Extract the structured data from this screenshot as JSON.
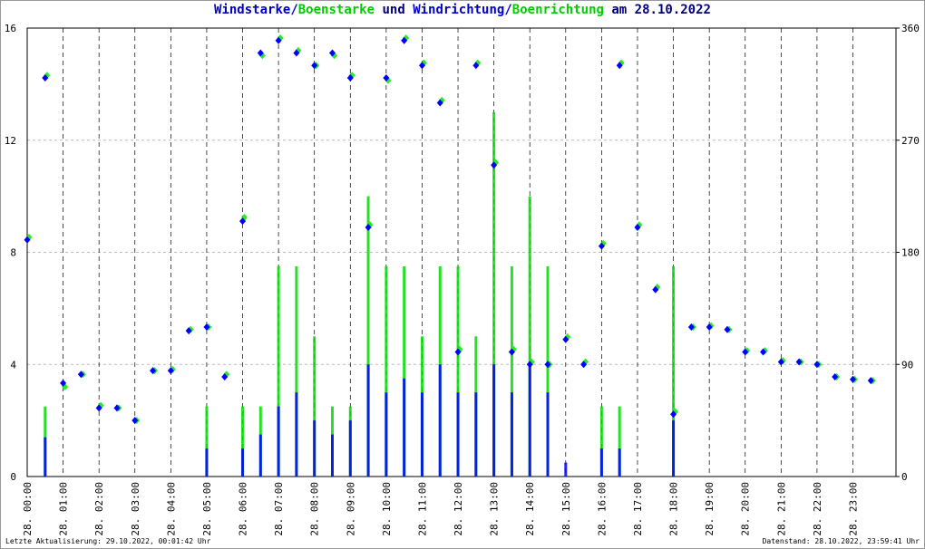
{
  "chart_data": {
    "type": "wind",
    "title_parts": [
      {
        "text": "Windstarke",
        "color": "#0000cc"
      },
      {
        "text": "/",
        "color": "#0000cc"
      },
      {
        "text": "Boenstarke",
        "color": "#00cc00"
      },
      {
        "text": " und ",
        "color": "#000080"
      },
      {
        "text": "Windrichtung",
        "color": "#0000cc"
      },
      {
        "text": "/",
        "color": "#0000cc"
      },
      {
        "text": "Boenrichtung",
        "color": "#00cc00"
      },
      {
        "text": " am 28.10.2022",
        "color": "#000080"
      }
    ],
    "x": [
      0,
      0.5,
      1,
      1.5,
      2,
      2.5,
      3,
      3.5,
      4,
      4.5,
      5,
      5.5,
      6,
      6.5,
      7,
      7.5,
      8,
      8.5,
      9,
      9.5,
      10,
      10.5,
      11,
      11.5,
      12,
      12.5,
      13,
      13.5,
      14,
      14.5,
      15,
      15.5,
      16,
      16.5,
      17,
      17.5,
      18,
      18.5,
      19,
      19.5,
      20,
      20.5,
      21,
      21.5,
      22,
      22.5,
      23,
      23.5
    ],
    "xlim": [
      0,
      24.2
    ],
    "xticks": [
      {
        "value": 0,
        "label": "28. 00:00"
      },
      {
        "value": 1,
        "label": "28. 01:00"
      },
      {
        "value": 2,
        "label": "28. 02:00"
      },
      {
        "value": 3,
        "label": "28. 03:00"
      },
      {
        "value": 4,
        "label": "28. 04:00"
      },
      {
        "value": 5,
        "label": "28. 05:00"
      },
      {
        "value": 6,
        "label": "28. 06:00"
      },
      {
        "value": 7,
        "label": "28. 07:00"
      },
      {
        "value": 8,
        "label": "28. 08:00"
      },
      {
        "value": 9,
        "label": "28. 09:00"
      },
      {
        "value": 10,
        "label": "28. 10:00"
      },
      {
        "value": 11,
        "label": "28. 11:00"
      },
      {
        "value": 12,
        "label": "28. 12:00"
      },
      {
        "value": 13,
        "label": "28. 13:00"
      },
      {
        "value": 14,
        "label": "28. 14:00"
      },
      {
        "value": 15,
        "label": "28. 15:00"
      },
      {
        "value": 16,
        "label": "28. 16:00"
      },
      {
        "value": 17,
        "label": "28. 17:00"
      },
      {
        "value": 18,
        "label": "28. 18:00"
      },
      {
        "value": 19,
        "label": "28. 19:00"
      },
      {
        "value": 20,
        "label": "28. 20:00"
      },
      {
        "value": 21,
        "label": "28. 21:00"
      },
      {
        "value": 22,
        "label": "28. 22:00"
      },
      {
        "value": 23,
        "label": "28. 23:00"
      }
    ],
    "ylim": [
      0,
      16
    ],
    "yticks": [
      0,
      4,
      8,
      12,
      16
    ],
    "y2lim": [
      0,
      360
    ],
    "y2ticks": [
      0,
      90,
      180,
      270,
      360
    ],
    "series": [
      {
        "name": "Boenstarke",
        "color": "#00dd00",
        "kind": "speed",
        "values": [
          0,
          2.5,
          0,
          0,
          0,
          0,
          0,
          0,
          0,
          0,
          2.5,
          0,
          2.5,
          2.5,
          7.5,
          7.5,
          5,
          2.5,
          2.5,
          10,
          7.5,
          7.5,
          5,
          7.5,
          7.5,
          5,
          13,
          7.5,
          10,
          7.5,
          0,
          0,
          2.5,
          2.5,
          0,
          0,
          7.5,
          0,
          0,
          0,
          0,
          0,
          0,
          0,
          0,
          0,
          0,
          0
        ]
      },
      {
        "name": "Windstarke",
        "color": "#0000ff",
        "kind": "speed",
        "values": [
          0,
          1.4,
          0,
          0,
          0,
          0,
          0,
          0,
          0,
          0,
          1,
          0,
          1,
          1.5,
          2.5,
          3,
          2,
          1.5,
          2,
          4,
          3,
          3.5,
          3,
          4,
          3,
          3,
          4,
          3,
          4,
          3,
          0.5,
          0,
          1,
          1,
          0,
          0,
          2,
          0,
          0,
          0,
          0,
          0,
          0,
          0,
          0,
          0,
          0,
          0
        ]
      },
      {
        "name": "Boenrichtung",
        "color": "#22ee22",
        "kind": "direction",
        "axis": "y2",
        "values": [
          192,
          322,
          72,
          82,
          57,
          55,
          45,
          85,
          86,
          118,
          120,
          82,
          208,
          338,
          352,
          342,
          330,
          338,
          322,
          202,
          318,
          352,
          332,
          302,
          102,
          332,
          252,
          102,
          92,
          90,
          112,
          92,
          187,
          332,
          202,
          152,
          52,
          120,
          121,
          118,
          101,
          101,
          93,
          92,
          90,
          80,
          78,
          77
        ]
      },
      {
        "name": "Windrichtung",
        "color": "#0000ff",
        "kind": "direction",
        "axis": "y2",
        "values": [
          190,
          320,
          75,
          82,
          55,
          55,
          45,
          85,
          85,
          117,
          120,
          80,
          205,
          340,
          350,
          340,
          330,
          340,
          320,
          200,
          320,
          350,
          330,
          300,
          100,
          330,
          250,
          100,
          90,
          90,
          110,
          90,
          185,
          330,
          200,
          150,
          50,
          120,
          120,
          118,
          100,
          100,
          92,
          92,
          90,
          80,
          78,
          77
        ]
      }
    ],
    "footer_left": "Letzte Aktualisierung: 29.10.2022, 00:01:42 Uhr",
    "footer_right": "Datenstand: 28.10.2022, 23:59:41 Uhr"
  }
}
